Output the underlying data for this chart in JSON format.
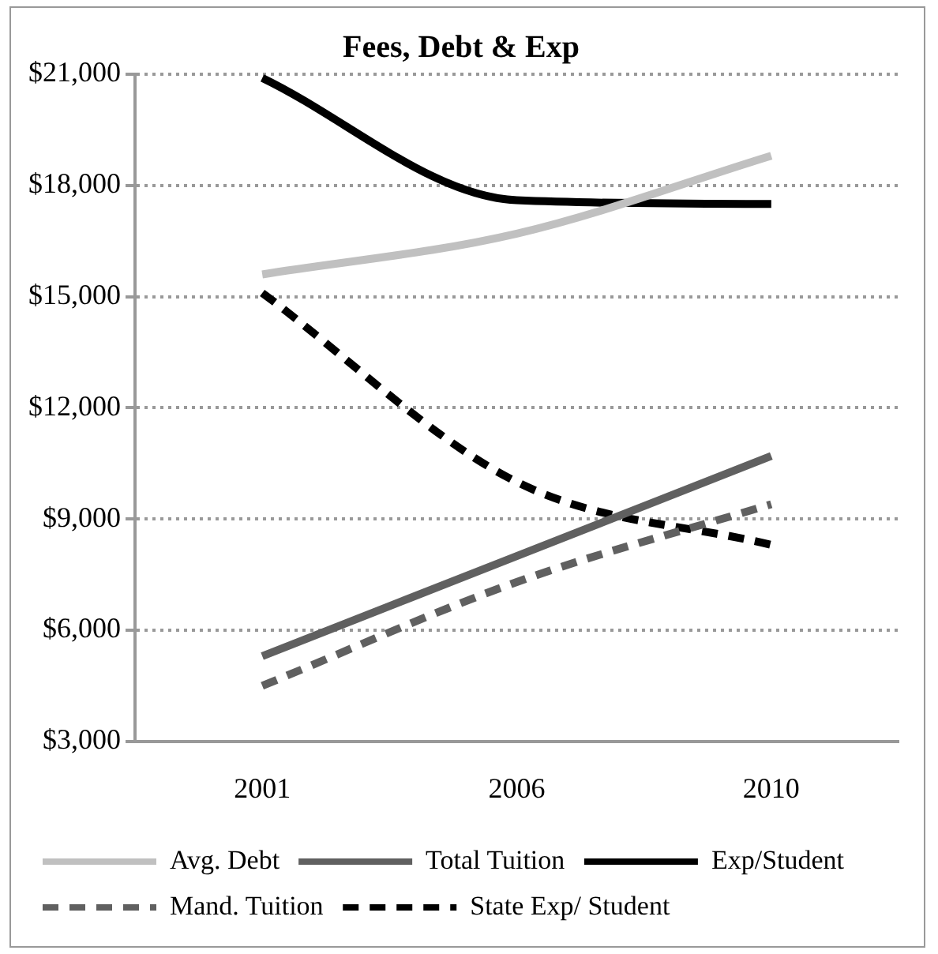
{
  "chart_data": {
    "type": "line",
    "title": "Fees, Debt & Exp",
    "categories": [
      "2001",
      "2006",
      "2010"
    ],
    "series": [
      {
        "name": "Avg. Debt",
        "color": "#c0c0c0",
        "values": [
          15600,
          16700,
          18800
        ],
        "line_style": "solid"
      },
      {
        "name": "Total Tuition",
        "color": "#606060",
        "values": [
          5300,
          8000,
          10700
        ],
        "line_style": "solid"
      },
      {
        "name": "Exp/Student",
        "color": "#000000",
        "values": [
          20900,
          17600,
          17500
        ],
        "line_style": "solid"
      },
      {
        "name": "Mand. Tuition",
        "color": "#606060",
        "values": [
          4500,
          7300,
          9400
        ],
        "line_style": "dashed"
      },
      {
        "name": "State Exp/ Student",
        "color": "#000000",
        "values": [
          15100,
          10000,
          8300
        ],
        "line_style": "dashed"
      }
    ],
    "ylim": [
      3000,
      21000
    ],
    "yticks": [
      {
        "value": 3000,
        "label": "$3,000"
      },
      {
        "value": 6000,
        "label": "$6,000"
      },
      {
        "value": 9000,
        "label": "$9,000"
      },
      {
        "value": 12000,
        "label": "$12,000"
      },
      {
        "value": 15000,
        "label": "$15,000"
      },
      {
        "value": 18000,
        "label": "$18,000"
      },
      {
        "value": 21000,
        "label": "$21,000"
      }
    ],
    "grid": "y",
    "legend": "bottom",
    "marker": "none"
  }
}
